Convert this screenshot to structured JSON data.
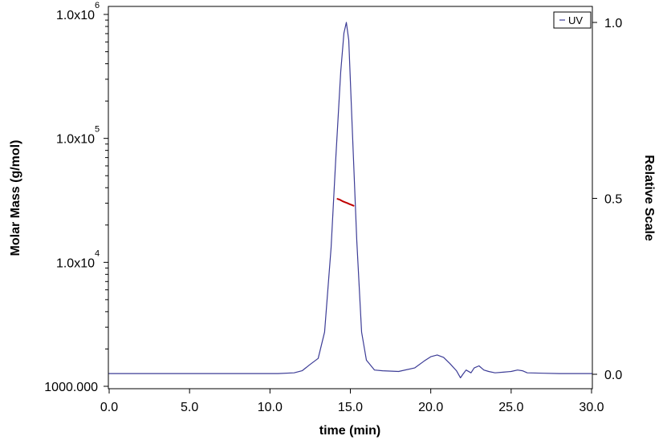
{
  "chart_data": {
    "type": "line",
    "xlabel": "time (min)",
    "ylabel_left": "Molar Mass (g/mol)",
    "ylabel_right": "Relative Scale",
    "xlim": [
      0,
      30
    ],
    "ylim_left": [
      1000,
      1000000
    ],
    "y_left_scale": "log",
    "ylim_right": [
      0,
      1
    ],
    "x_ticks": [
      0,
      5,
      10,
      15,
      20,
      25,
      30
    ],
    "x_tick_labels": [
      "0.0",
      "5.0",
      "10.0",
      "15.0",
      "20.0",
      "25.0",
      "30.0"
    ],
    "y_left_ticks": [
      {
        "value": 1000000,
        "base": "1.0x10",
        "exp": "6"
      },
      {
        "value": 100000,
        "base": "1.0x10",
        "exp": "5"
      },
      {
        "value": 10000,
        "base": "1.0x10",
        "exp": "4"
      },
      {
        "value": 1000,
        "base": "1000.000",
        "exp": ""
      }
    ],
    "y_right_ticks": [
      0,
      0.5,
      1
    ],
    "y_right_tick_labels": [
      "0.0",
      "0.5",
      "1.0"
    ],
    "grid": false,
    "legend_position": "top-right",
    "legend": [
      "UV"
    ],
    "colors": {
      "uv": "#3c3c96",
      "molar_mass": "#c00000"
    },
    "series": [
      {
        "name": "UV",
        "axis": "right",
        "x": [
          0,
          10.5,
          11.5,
          12.0,
          12.5,
          13.0,
          13.4,
          13.8,
          14.1,
          14.4,
          14.6,
          14.75,
          14.9,
          15.1,
          15.4,
          15.7,
          16.0,
          16.5,
          17.0,
          18.0,
          19.0,
          19.6,
          20.0,
          20.4,
          20.8,
          21.2,
          21.6,
          21.85,
          22.0,
          22.2,
          22.5,
          22.7,
          23.0,
          23.3,
          23.6,
          24.0,
          24.5,
          25.0,
          25.4,
          25.7,
          26.0,
          27.0,
          28.0,
          29.0,
          30.0
        ],
        "y": [
          0.002,
          0.002,
          0.004,
          0.01,
          0.028,
          0.045,
          0.12,
          0.36,
          0.62,
          0.86,
          0.97,
          1.0,
          0.95,
          0.72,
          0.38,
          0.12,
          0.04,
          0.012,
          0.01,
          0.008,
          0.018,
          0.038,
          0.05,
          0.055,
          0.048,
          0.03,
          0.01,
          -0.01,
          0.0,
          0.012,
          0.004,
          0.018,
          0.024,
          0.012,
          0.008,
          0.004,
          0.006,
          0.008,
          0.012,
          0.01,
          0.004,
          0.003,
          0.002,
          0.002,
          0.002
        ]
      },
      {
        "name": "",
        "axis": "left",
        "x": [
          14.2,
          14.35,
          14.5,
          14.65,
          14.8,
          14.95,
          15.1,
          15.2
        ],
        "y": [
          32500,
          32000,
          31200,
          30600,
          30100,
          29500,
          29000,
          28600
        ]
      }
    ]
  }
}
